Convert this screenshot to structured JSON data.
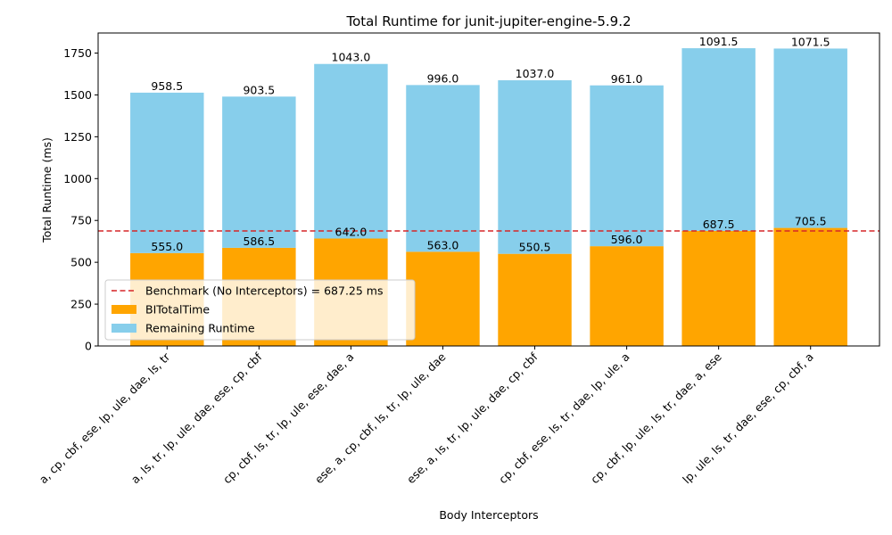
{
  "chart_data": {
    "type": "bar",
    "stacked": true,
    "title": "Total Runtime for junit-jupiter-engine-5.9.2",
    "xlabel": "Body Interceptors",
    "ylabel": "Total Runtime (ms)",
    "ylim": [
      0,
      1870
    ],
    "yticks": [
      0,
      250,
      500,
      750,
      1000,
      1250,
      1500,
      1750
    ],
    "grid": false,
    "legend_position": "lower-left",
    "categories": [
      "a, cp, cbf, ese, lp, ule, dae, ls, tr",
      "a, ls, tr, lp, ule, dae, ese, cp, cbf",
      "cp, cbf, ls, tr, lp, ule, ese, dae, a",
      "ese, a, cp, cbf, ls, tr, lp, ule, dae",
      "ese, a, ls, tr, lp, ule, dae, cp, cbf",
      "cp, cbf, ese, ls, tr, dae, lp, ule, a",
      "cp, cbf, lp, ule, ls, tr, dae, a, ese",
      "lp, ule, ls, tr, dae, ese, cp, cbf, a"
    ],
    "series": [
      {
        "name": "BITotalTime",
        "color": "#ffa500",
        "values": [
          555.0,
          586.5,
          642.0,
          563.0,
          550.5,
          596.0,
          687.5,
          705.5
        ],
        "labels": [
          "555.0",
          "586.5",
          "642.0",
          "563.0",
          "550.5",
          "596.0",
          "687.5",
          "705.5"
        ]
      },
      {
        "name": "Remaining Runtime",
        "color": "#87ceeb",
        "values": [
          958.5,
          903.5,
          1043.0,
          996.0,
          1037.0,
          961.0,
          1091.5,
          1071.5
        ],
        "labels": [
          "958.5",
          "903.5",
          "1043.0",
          "996.0",
          "1037.0",
          "961.0",
          "1091.5",
          "1071.5"
        ]
      }
    ],
    "reference_line": {
      "label": "Benchmark (No Interceptors) = 687.25 ms",
      "value": 687.25,
      "color": "#d62728",
      "style": "dashed"
    }
  }
}
